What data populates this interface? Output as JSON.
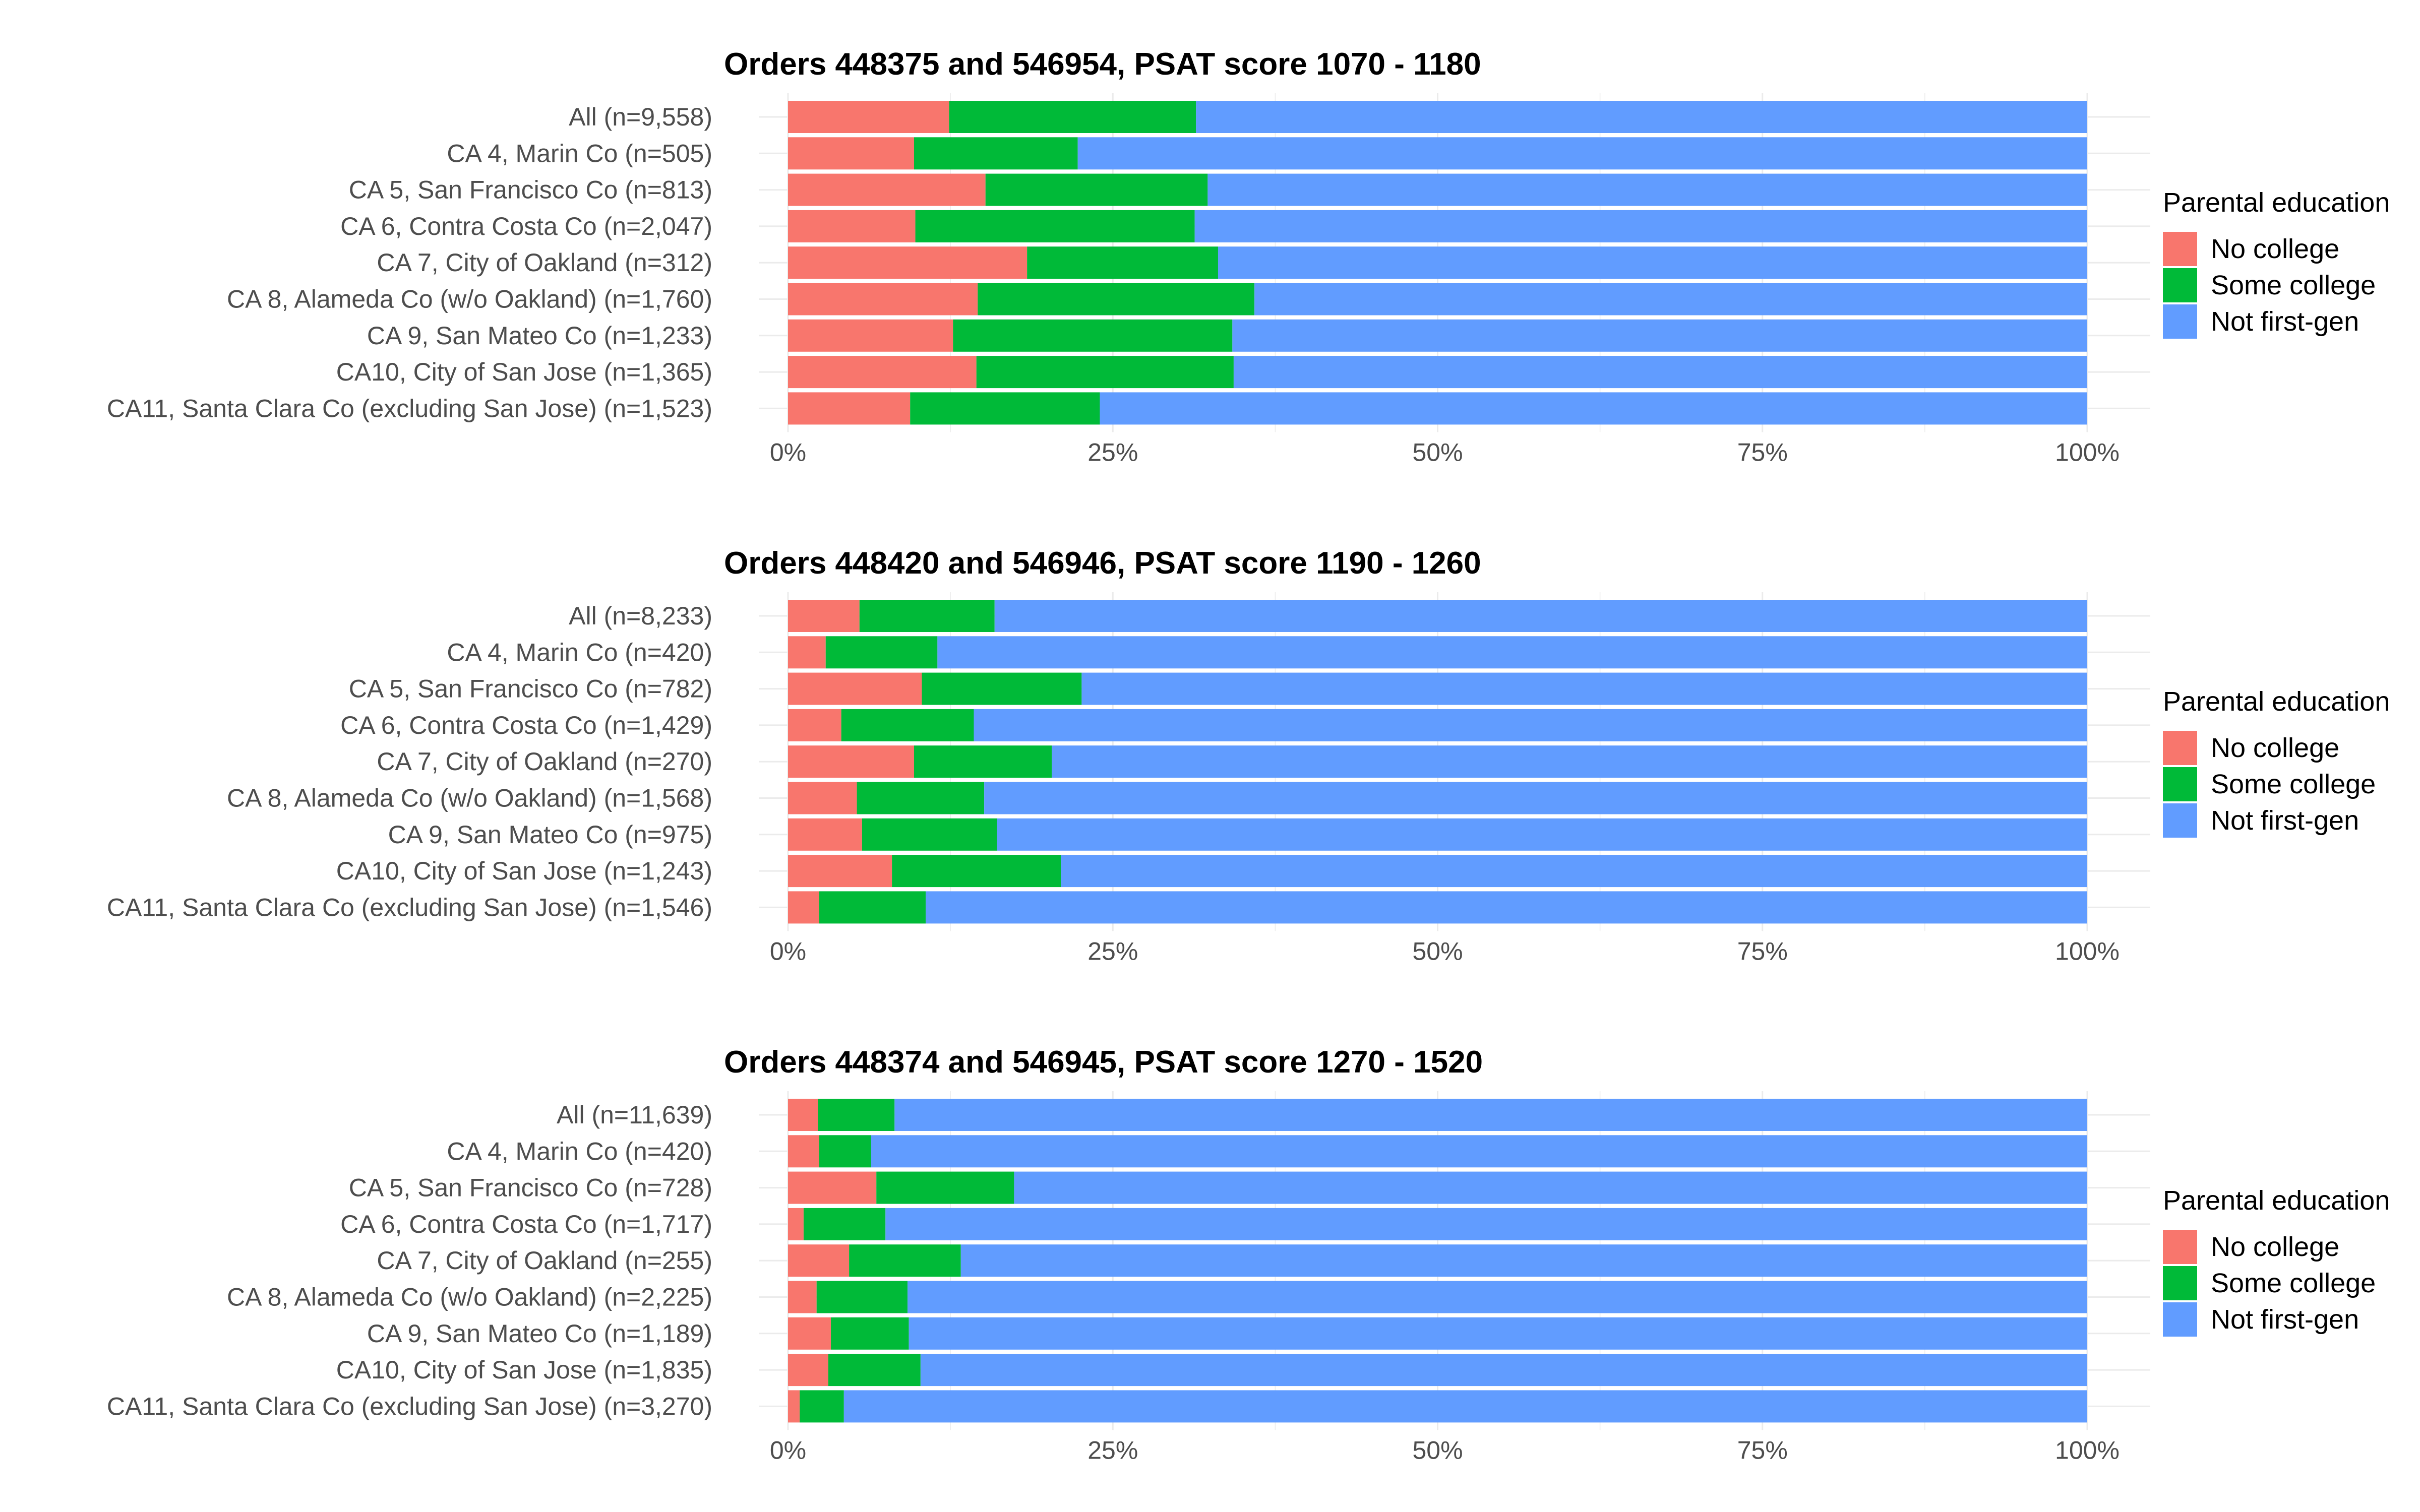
{
  "chart_data": [
    {
      "type": "bar",
      "orientation": "horizontal",
      "stacked": "percent",
      "title": "Orders 448375 and 546954, PSAT score 1070 - 1180",
      "categories": [
        "All (n=9,558)",
        "CA 4, Marin Co (n=505)",
        "CA 5, San Francisco Co (n=813)",
        "CA 6, Contra Costa Co (n=2,047)",
        "CA 7, City of Oakland (n=312)",
        "CA 8, Alameda Co (w/o Oakland) (n=1,760)",
        "CA 9, San Mateo Co (n=1,233)",
        "CA10, City of San Jose (n=1,365)",
        "CA11, Santa Clara Co (excluding San Jose) (n=1,523)"
      ],
      "series": [
        {
          "name": "No college",
          "values": [
            12.4,
            9.7,
            15.2,
            9.8,
            18.4,
            14.6,
            12.7,
            14.5,
            9.4
          ]
        },
        {
          "name": "Some college",
          "values": [
            19.0,
            12.6,
            17.1,
            21.5,
            14.7,
            21.3,
            21.5,
            19.8,
            14.6
          ]
        },
        {
          "name": "Not first-gen",
          "values": [
            68.6,
            77.7,
            67.7,
            68.7,
            66.9,
            64.1,
            65.8,
            65.7,
            76.0
          ]
        }
      ],
      "x_ticks": [
        "0%",
        "25%",
        "50%",
        "75%",
        "100%"
      ],
      "xlim": [
        0,
        100
      ],
      "legend": {
        "title": "Parental education",
        "position": "right"
      }
    },
    {
      "type": "bar",
      "orientation": "horizontal",
      "stacked": "percent",
      "title": "Orders 448420 and 546946, PSAT score 1190 - 1260",
      "categories": [
        "All (n=8,233)",
        "CA 4, Marin Co (n=420)",
        "CA 5, San Francisco Co (n=782)",
        "CA 6, Contra Costa Co (n=1,429)",
        "CA 7, City of Oakland (n=270)",
        "CA 8, Alameda Co (w/o Oakland) (n=1,568)",
        "CA 9, San Mateo Co (n=975)",
        "CA10, City of San Jose (n=1,243)",
        "CA11, Santa Clara Co (excluding San Jose) (n=1,546)"
      ],
      "series": [
        {
          "name": "No college",
          "values": [
            5.5,
            2.9,
            10.3,
            4.1,
            9.7,
            5.3,
            5.7,
            8.0,
            2.4
          ]
        },
        {
          "name": "Some college",
          "values": [
            10.4,
            8.6,
            12.3,
            10.2,
            10.6,
            9.8,
            10.4,
            13.0,
            8.2
          ]
        },
        {
          "name": "Not first-gen",
          "values": [
            84.1,
            88.5,
            77.4,
            85.7,
            79.7,
            84.9,
            83.9,
            79.0,
            89.4
          ]
        }
      ],
      "x_ticks": [
        "0%",
        "25%",
        "50%",
        "75%",
        "100%"
      ],
      "xlim": [
        0,
        100
      ],
      "legend": {
        "title": "Parental education",
        "position": "right"
      }
    },
    {
      "type": "bar",
      "orientation": "horizontal",
      "stacked": "percent",
      "title": "Orders 448374 and 546945, PSAT score 1270 - 1520",
      "categories": [
        "All (n=11,639)",
        "CA 4, Marin Co (n=420)",
        "CA 5, San Francisco Co (n=728)",
        "CA 6, Contra Costa Co (n=1,717)",
        "CA 7, City of Oakland (n=255)",
        "CA 8, Alameda Co (w/o Oakland) (n=2,225)",
        "CA 9, San Mateo Co (n=1,189)",
        "CA10, City of San Jose (n=1,835)",
        "CA11, Santa Clara Co (excluding San Jose) (n=3,270)"
      ],
      "series": [
        {
          "name": "No college",
          "values": [
            2.3,
            2.4,
            6.8,
            1.2,
            4.7,
            2.2,
            3.3,
            3.1,
            0.9
          ]
        },
        {
          "name": "Some college",
          "values": [
            5.9,
            4.0,
            10.6,
            6.3,
            8.6,
            7.0,
            6.0,
            7.1,
            3.4
          ]
        },
        {
          "name": "Not first-gen",
          "values": [
            91.8,
            93.6,
            82.6,
            92.5,
            86.7,
            90.8,
            90.7,
            89.8,
            95.7
          ]
        }
      ],
      "x_ticks": [
        "0%",
        "25%",
        "50%",
        "75%",
        "100%"
      ],
      "xlim": [
        0,
        100
      ],
      "legend": {
        "title": "Parental education",
        "position": "right"
      }
    }
  ],
  "colors": {
    "No college": "#F8766D",
    "Some college": "#00BA38",
    "Not first-gen": "#619CFF",
    "grid": "#EBEBEB",
    "axis_text": "#4d4d4d"
  }
}
